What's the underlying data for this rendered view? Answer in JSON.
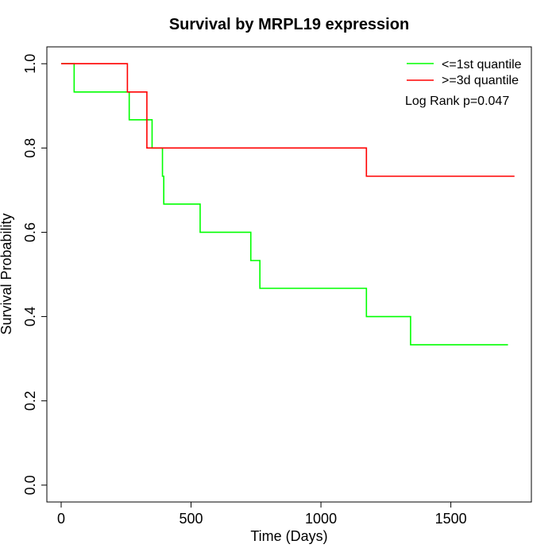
{
  "chart_data": {
    "type": "line",
    "title": "Survival by MRPL19 expression",
    "xlabel": "Time (Days)",
    "ylabel": "Survival Probability",
    "xlim": [
      -55,
      1810
    ],
    "ylim": [
      -0.04,
      1.04
    ],
    "xticks": [
      0,
      500,
      1000,
      1500
    ],
    "yticks": [
      0.0,
      0.2,
      0.4,
      0.6,
      0.8,
      1.0
    ],
    "xtick_labels": [
      "0",
      "500",
      "1000",
      "1500"
    ],
    "ytick_labels": [
      "0.0",
      "0.2",
      "0.4",
      "0.6",
      "0.8",
      "1.0"
    ],
    "annotation": "Log Rank p=0.047",
    "legend_position": "top-right",
    "grid": false,
    "series": [
      {
        "name": "<=1st quantile",
        "color": "#00ff00",
        "step": "post",
        "points": [
          [
            0,
            1.0
          ],
          [
            50,
            0.933
          ],
          [
            262,
            0.867
          ],
          [
            350,
            0.8
          ],
          [
            390,
            0.733
          ],
          [
            395,
            0.667
          ],
          [
            535,
            0.6
          ],
          [
            730,
            0.533
          ],
          [
            765,
            0.467
          ],
          [
            1175,
            0.4
          ],
          [
            1345,
            0.333
          ],
          [
            1720,
            0.333
          ]
        ]
      },
      {
        "name": ">=3d quantile",
        "color": "#ff0000",
        "step": "post",
        "points": [
          [
            0,
            1.0
          ],
          [
            255,
            0.933
          ],
          [
            330,
            0.8
          ],
          [
            1175,
            0.733
          ],
          [
            1745,
            0.733
          ]
        ]
      }
    ]
  }
}
